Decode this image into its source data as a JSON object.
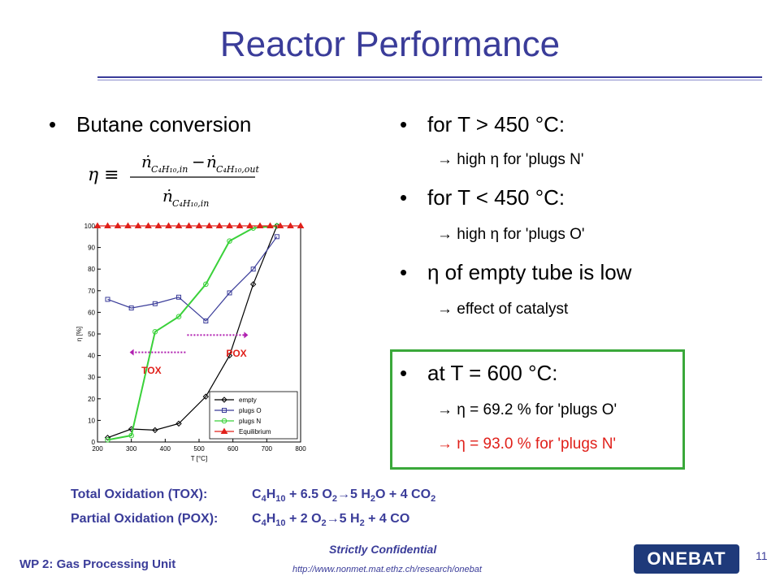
{
  "slide": {
    "title": "Reactor Performance",
    "page_number": "11"
  },
  "left": {
    "bullet": "Butane conversion",
    "formula": {
      "lhs": "η ≡",
      "n1": "ṅ",
      "n1_sub": "C₄H₁₀,in",
      "minus": "−",
      "n2": "ṅ",
      "n2_sub": "C₄H₁₀,out",
      "den": "ṅ",
      "den_sub": "C₄H₁₀,in"
    }
  },
  "right": {
    "items": [
      {
        "bullet": "for T > 450 °C:",
        "sub": "→ high η for 'plugs N'"
      },
      {
        "bullet": "for T < 450 °C:",
        "sub": "→ high η for 'plugs O'"
      },
      {
        "bullet": "η of empty tube is low",
        "sub": "→ effect of catalyst"
      }
    ],
    "box": {
      "bullet": "at T = 600 °C:",
      "sub1": "→ η = 69.2 % for 'plugs O'",
      "sub2": "→ η = 93.0 % for 'plugs N'",
      "sub2_color": "#e0201a"
    }
  },
  "equations": {
    "tox_label": "Total Oxidation (TOX):",
    "pox_label": "Partial Oxidation (POX):"
  },
  "footer": {
    "left": "WP 2: Gas Processing Unit",
    "center": "Strictly Confidential",
    "url": "http://www.nonmet.mat.ethz.ch/research/onebat",
    "logo": "ONEBAT"
  },
  "colors": {
    "title": "#3a3c99",
    "empty": "#000000",
    "plugs_o": "#3a3c99",
    "plugs_n": "#3ad13a",
    "equilibrium": "#e0201a",
    "arrow": "#b01eb0"
  },
  "chart_data": {
    "type": "line",
    "xlabel": "T [°C]",
    "ylabel": "η [%]",
    "xlim": [
      200,
      800
    ],
    "ylim": [
      0,
      100
    ],
    "xticks": [
      200,
      300,
      400,
      500,
      600,
      700,
      800
    ],
    "yticks": [
      0,
      10,
      20,
      30,
      40,
      50,
      60,
      70,
      80,
      90,
      100
    ],
    "legend_position": "bottom-right",
    "series": [
      {
        "name": "empty",
        "marker": "diamond",
        "color": "#000000",
        "x": [
          230,
          300,
          370,
          440,
          520,
          590,
          660,
          730
        ],
        "y": [
          2,
          6,
          5.5,
          8.5,
          21,
          40,
          73,
          100
        ]
      },
      {
        "name": "plugs O",
        "marker": "square",
        "color": "#3a3c99",
        "x": [
          230,
          300,
          370,
          440,
          520,
          590,
          660,
          730
        ],
        "y": [
          66,
          62,
          64,
          67,
          56,
          69,
          80,
          95
        ]
      },
      {
        "name": "plugs N",
        "marker": "circle",
        "color": "#3ad13a",
        "x": [
          230,
          300,
          370,
          440,
          520,
          590,
          660,
          730
        ],
        "y": [
          1,
          3,
          51,
          58,
          73,
          93,
          99,
          100
        ]
      },
      {
        "name": "Equilibrium",
        "marker": "triangle",
        "color": "#e0201a",
        "x": [
          200,
          230,
          260,
          290,
          320,
          350,
          380,
          410,
          440,
          470,
          500,
          530,
          560,
          590,
          620,
          650,
          680,
          710,
          740,
          770,
          800
        ],
        "y": [
          100,
          100,
          100,
          100,
          100,
          100,
          100,
          100,
          100,
          100,
          100,
          100,
          100,
          100,
          100,
          100,
          100,
          100,
          100,
          100,
          100
        ]
      }
    ],
    "annotations": [
      {
        "text": "POX",
        "color": "#e0201a"
      },
      {
        "text": "TOX",
        "color": "#e0201a"
      }
    ]
  }
}
